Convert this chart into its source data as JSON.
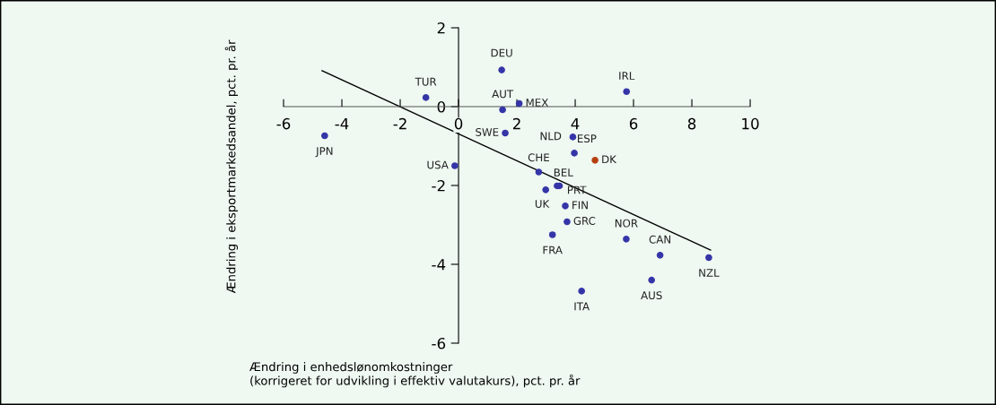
{
  "chart_data": {
    "type": "scatter",
    "xlabel": "Ændring i enhedslønomkostninger\n(korrigeret for udvikling i effektiv valutakurs), pct. pr. år",
    "ylabel": "Ændring i eksportmarkedsandel, pct. pr. år",
    "xlim": [
      -6,
      10
    ],
    "xticks": [
      -6,
      -4,
      -2,
      0,
      2,
      4,
      6,
      8,
      10
    ],
    "ylim": [
      -6,
      2
    ],
    "yticks": [
      -6,
      -4,
      -2,
      0,
      2
    ],
    "grid": false,
    "series": [
      {
        "marker": "circle",
        "color": "#3535a8",
        "x": [
          -4.59,
          -1.12,
          1.48,
          1.51,
          2.08,
          5.76,
          1.6,
          3.92,
          3.97,
          -0.13,
          2.75,
          3.38,
          3.46,
          2.99,
          3.66,
          3.72,
          3.22,
          5.75,
          6.91,
          8.58,
          6.62,
          4.22
        ],
        "values": [
          -0.74,
          0.23,
          0.93,
          -0.08,
          0.08,
          0.38,
          -0.67,
          -0.77,
          -1.18,
          -1.5,
          -1.66,
          -2.01,
          -2.01,
          -2.11,
          -2.52,
          -2.92,
          -3.25,
          -3.36,
          -3.77,
          -3.83,
          -4.4,
          -4.68
        ]
      },
      {
        "type": "scatter",
        "marker": "circle",
        "color": "#b5400f",
        "x": [
          4.68
        ],
        "values": [
          -1.36
        ]
      },
      {
        "type": "line",
        "color": "#000000",
        "x": [
          -4.68,
          8.64
        ],
        "values": [
          0.91,
          -3.64
        ]
      }
    ],
    "annotations": [
      {
        "text": "JPN",
        "x": -4.59,
        "y": -0.74
      },
      {
        "text": "TUR",
        "x": -1.12,
        "y": 0.23
      },
      {
        "text": "DEU",
        "x": 1.48,
        "y": 0.93
      },
      {
        "text": "AUT",
        "x": 1.51,
        "y": -0.08
      },
      {
        "text": "MEX",
        "x": 2.08,
        "y": 0.08
      },
      {
        "text": "IRL",
        "x": 5.76,
        "y": 0.38
      },
      {
        "text": "SWE",
        "x": 1.6,
        "y": -0.67
      },
      {
        "text": "NLD",
        "x": 3.92,
        "y": -0.77
      },
      {
        "text": "ESP",
        "x": 3.97,
        "y": -1.18
      },
      {
        "text": "USA",
        "x": -0.13,
        "y": -1.5
      },
      {
        "text": "CHE",
        "x": 2.75,
        "y": -1.66
      },
      {
        "text": "BEL",
        "x": 3.38,
        "y": -2.01
      },
      {
        "text": "PRT",
        "x": 3.46,
        "y": -2.01
      },
      {
        "text": "UK",
        "x": 2.99,
        "y": -2.11
      },
      {
        "text": "FIN",
        "x": 3.66,
        "y": -2.52
      },
      {
        "text": "GRC",
        "x": 3.72,
        "y": -2.92
      },
      {
        "text": "FRA",
        "x": 3.22,
        "y": -3.25
      },
      {
        "text": "NOR",
        "x": 5.75,
        "y": -3.36
      },
      {
        "text": "CAN",
        "x": 6.91,
        "y": -3.77
      },
      {
        "text": "NZL",
        "x": 8.58,
        "y": -3.83
      },
      {
        "text": "AUS",
        "x": 6.62,
        "y": -4.4
      },
      {
        "text": "ITA",
        "x": 4.22,
        "y": -4.68
      },
      {
        "text": "DK",
        "x": 4.68,
        "y": -1.36
      }
    ]
  }
}
